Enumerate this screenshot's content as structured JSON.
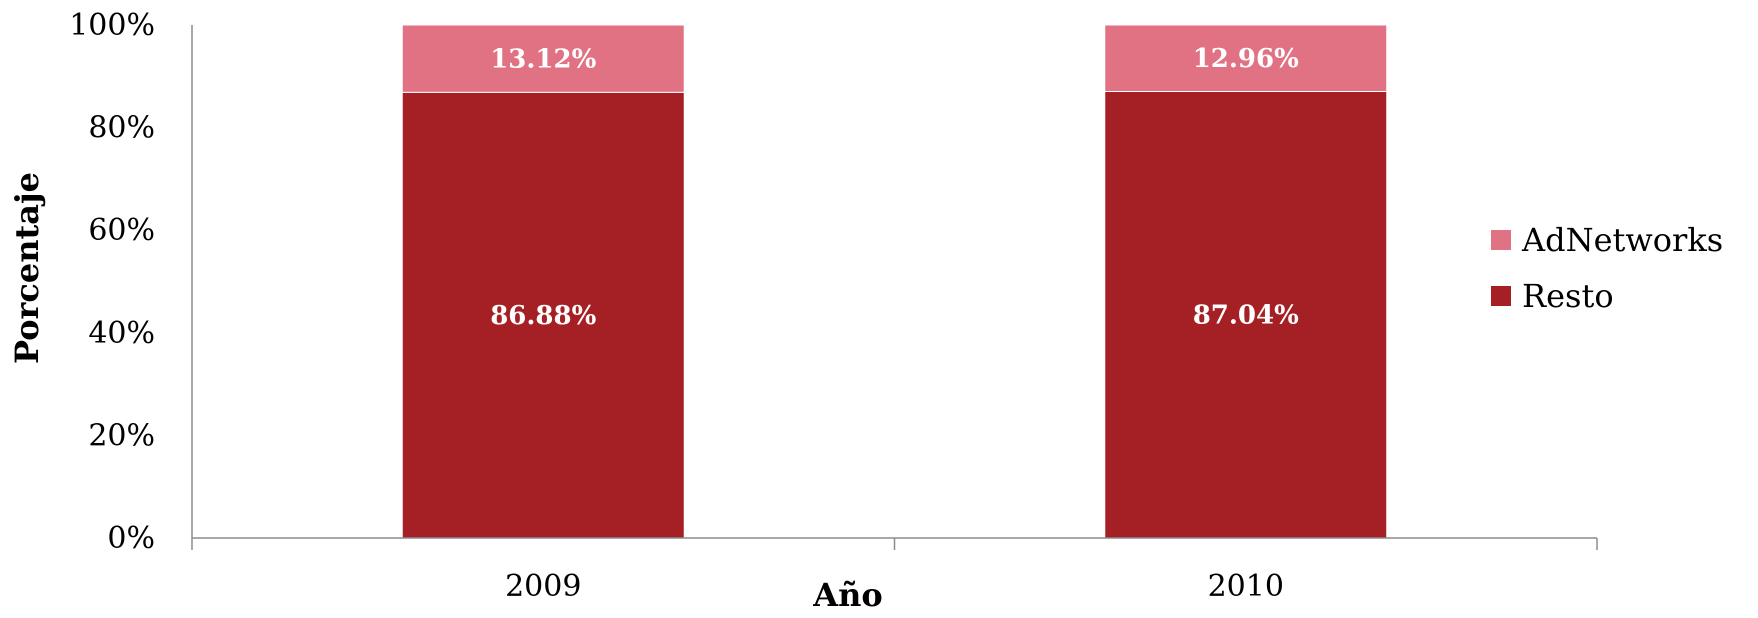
{
  "chart_data": {
    "type": "bar",
    "stacked": true,
    "percent_stacked": true,
    "categories": [
      "2009",
      "2010"
    ],
    "series": [
      {
        "name": "Resto",
        "color": "#A52024",
        "values": [
          86.88,
          87.04
        ],
        "labels": [
          "86.88%",
          "87.04%"
        ]
      },
      {
        "name": "AdNetworks",
        "color": "#E07284",
        "values": [
          13.12,
          12.96
        ],
        "labels": [
          "13.12%",
          "12.96%"
        ]
      }
    ],
    "xlabel": "Año",
    "ylabel": "Porcentaje",
    "ylim": [
      0,
      100
    ],
    "yticks": [
      0,
      20,
      40,
      60,
      80,
      100
    ],
    "ytick_labels": [
      "0%",
      "20%",
      "40%",
      "60%",
      "80%",
      "100%"
    ],
    "legend": {
      "position": "right",
      "order": [
        "AdNetworks",
        "Resto"
      ]
    },
    "grid": false
  }
}
